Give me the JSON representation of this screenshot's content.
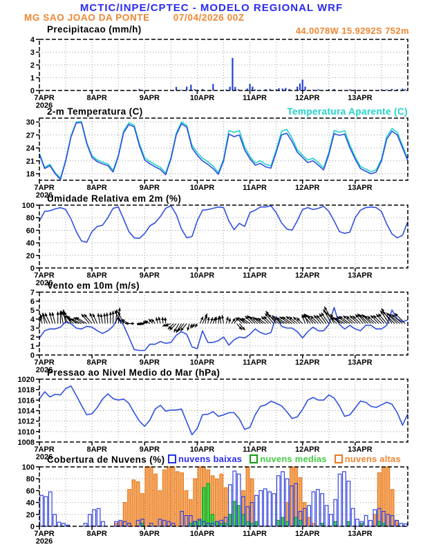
{
  "header": {
    "line1": "MCTIC/INPE/CPTEC - MODELO REGIONAL WRF",
    "station": "MG SAO JOAO DA PONTE",
    "run": "07/04/2026 00Z",
    "coords": "44.0078W 15.9292S 752m"
  },
  "colors": {
    "header_blue": "#2b2bf0",
    "orange": "#ef8632",
    "line_blue": "#2f4fe0",
    "cyan": "#1fd3c9",
    "green_fill": "#44cc44",
    "green_stroke": "#0f9a0f",
    "orange_fill": "#f5a45a",
    "orange_stroke": "#e6791e",
    "bar_blue": "#2040d8"
  },
  "x_axis": {
    "tick_labels": [
      "7APR",
      "8APR",
      "9APR",
      "10APR",
      "11APR",
      "12APR",
      "13APR"
    ],
    "year": "2026",
    "range_days": [
      7,
      14
    ],
    "minor_grid_hours": 12
  },
  "chart_data": [
    {
      "id": "precipitation",
      "type": "bar",
      "title": "Precipitacao (mm/h)",
      "ylim": [
        0,
        4
      ],
      "yticks": [
        0,
        1,
        2,
        3,
        4
      ],
      "bars": [
        [
          8.8,
          0.06
        ],
        [
          8.9,
          0.12
        ],
        [
          8.96,
          0.05
        ],
        [
          9.6,
          0.28
        ],
        [
          9.7,
          0.06
        ],
        [
          9.8,
          0.3
        ],
        [
          9.88,
          0.45
        ],
        [
          9.95,
          0.1
        ],
        [
          10.1,
          0.12
        ],
        [
          10.3,
          0.5
        ],
        [
          10.55,
          0.08
        ],
        [
          10.62,
          0.3
        ],
        [
          10.67,
          2.55
        ],
        [
          10.72,
          0.28
        ],
        [
          10.78,
          0.1
        ],
        [
          10.95,
          0.15
        ],
        [
          11.0,
          0.52
        ],
        [
          11.05,
          0.3
        ],
        [
          11.1,
          0.08
        ],
        [
          11.3,
          0.1
        ],
        [
          11.38,
          0.12
        ],
        [
          11.5,
          0.1
        ],
        [
          11.55,
          0.18
        ],
        [
          11.62,
          0.15
        ],
        [
          11.68,
          0.2
        ],
        [
          11.75,
          0.12
        ],
        [
          11.9,
          0.3
        ],
        [
          11.95,
          0.55
        ],
        [
          12.0,
          0.85
        ],
        [
          12.05,
          0.3
        ],
        [
          12.2,
          0.07
        ],
        [
          12.3,
          0.1
        ],
        [
          12.5,
          0.1
        ],
        [
          12.6,
          0.12
        ],
        [
          12.75,
          0.05
        ],
        [
          12.9,
          0.1
        ],
        [
          13.0,
          0.07
        ],
        [
          13.1,
          0.05
        ],
        [
          13.3,
          0.05
        ],
        [
          13.5,
          0.1
        ],
        [
          13.6,
          0.08
        ],
        [
          13.7,
          0.12
        ],
        [
          13.8,
          0.1
        ],
        [
          13.9,
          0.15
        ],
        [
          13.95,
          0.1
        ]
      ]
    },
    {
      "id": "temperature",
      "type": "line",
      "title": "2-m Temperatura (C)",
      "legend_right": "Temperatura Aparente (C)",
      "ylim": [
        16.5,
        30.9
      ],
      "yticks": [
        18,
        21,
        24,
        27,
        30
      ],
      "t_start": 7.0,
      "t_step_days": 0.1,
      "series": [
        {
          "name": "Temperatura Aparente (C)",
          "color": "#1fd3c9",
          "values": [
            22.8,
            19.5,
            20.2,
            18.3,
            17.0,
            21.2,
            26.8,
            30.0,
            30.1,
            25.3,
            22.2,
            21.2,
            20.7,
            20.3,
            18.8,
            22.3,
            27.9,
            29.8,
            29.3,
            25.0,
            21.7,
            20.8,
            20.1,
            19.5,
            18.2,
            21.8,
            27.4,
            30.0,
            29.2,
            24.6,
            22.9,
            21.6,
            20.8,
            19.8,
            18.3,
            21.4,
            28.0,
            27.6,
            28.0,
            24.2,
            22.0,
            20.5,
            21.0,
            20.2,
            19.8,
            23.5,
            27.8,
            28.3,
            26.3,
            23.6,
            22.3,
            21.2,
            21.6,
            20.6,
            19.4,
            23.0,
            28.0,
            27.6,
            28.0,
            24.7,
            21.9,
            19.7,
            19.1,
            18.5,
            18.9,
            21.4,
            26.6,
            28.5,
            27.6,
            24.5,
            21.4
          ]
        },
        {
          "name": "2-m Temperatura (C)",
          "color": "#2f4fe0",
          "values": [
            22.5,
            19.2,
            19.9,
            18.0,
            16.7,
            21.0,
            26.5,
            29.8,
            29.9,
            25.0,
            21.8,
            20.8,
            20.3,
            19.9,
            18.4,
            22.0,
            27.5,
            29.4,
            28.9,
            24.5,
            21.2,
            20.3,
            19.6,
            19.0,
            17.8,
            21.5,
            27.0,
            29.6,
            28.8,
            24.0,
            22.3,
            21.0,
            20.2,
            19.2,
            17.9,
            21.0,
            27.2,
            26.6,
            27.0,
            23.5,
            21.5,
            20.0,
            20.4,
            19.6,
            19.3,
            23.0,
            27.0,
            27.4,
            25.5,
            23.0,
            21.8,
            20.6,
            21.0,
            20.0,
            18.9,
            22.5,
            27.3,
            26.9,
            27.2,
            24.0,
            21.4,
            19.2,
            18.6,
            18.0,
            18.4,
            21.0,
            26.0,
            27.9,
            27.0,
            24.0,
            21.0
          ]
        }
      ]
    },
    {
      "id": "humidity",
      "type": "line",
      "title": "Umidade Relativa em 2m (%)",
      "ylim": [
        0,
        100
      ],
      "yticks": [
        0,
        20,
        40,
        60,
        80,
        100
      ],
      "t_start": 7.0,
      "t_step_days": 0.1,
      "series": [
        {
          "name": "Umidade Relativa em 2m (%)",
          "color": "#2f4fe0",
          "values": [
            75,
            90,
            91,
            94,
            96,
            93,
            78,
            58,
            43,
            41,
            58,
            66,
            68,
            80,
            95,
            97,
            78,
            58,
            48,
            47,
            55,
            67,
            72,
            82,
            95,
            99,
            85,
            62,
            48,
            50,
            75,
            92,
            93,
            95,
            97,
            96,
            75,
            61,
            71,
            66,
            88,
            92,
            97,
            97,
            99,
            88,
            72,
            62,
            60,
            75,
            93,
            96,
            93,
            95,
            98,
            90,
            75,
            58,
            55,
            57,
            80,
            92,
            96,
            97,
            96,
            90,
            70,
            54,
            48,
            52,
            74
          ]
        }
      ]
    },
    {
      "id": "wind",
      "type": "line+vectors",
      "title": "Vento em 10m (m/s)",
      "ylim": [
        0,
        7
      ],
      "yticks": [
        0,
        1,
        2,
        3,
        4,
        5,
        6,
        7
      ],
      "t_start": 7.0,
      "t_step_days": 0.1,
      "series": [
        {
          "name": "Vento em 10m (m/s)",
          "color": "#2f4fe0",
          "values": [
            1.9,
            2.7,
            2.9,
            2.9,
            3.1,
            3.7,
            3.5,
            3.0,
            2.9,
            3.2,
            3.1,
            2.7,
            2.4,
            2.7,
            3.2,
            4.2,
            3.3,
            2.0,
            0.6,
            0.5,
            0.5,
            1.2,
            1.2,
            1.5,
            1.3,
            1.4,
            2.2,
            2.6,
            2.3,
            0.9,
            0.7,
            2.7,
            1.4,
            1.4,
            1.6,
            2.0,
            1.1,
            1.7,
            2.0,
            1.9,
            2.3,
            2.9,
            2.5,
            2.3,
            2.5,
            4.3,
            3.2,
            3.0,
            3.0,
            2.6,
            1.9,
            2.6,
            3.1,
            2.7,
            2.7,
            3.4,
            5.3,
            3.4,
            2.9,
            3.3,
            2.9,
            2.7,
            3.3,
            3.3,
            2.9,
            2.9,
            3.3,
            5.0,
            4.0,
            3.7,
            3.9
          ]
        }
      ],
      "vectors": {
        "anchor_value": 3.5,
        "directions_deg": [
          15,
          -10,
          -25,
          -15,
          0,
          -10,
          -30,
          -50,
          -65,
          -60,
          -40,
          -25,
          -10,
          -5,
          0,
          5,
          -25,
          -60,
          -90,
          110,
          -85,
          -60,
          -40,
          -15,
          -5,
          -115,
          -135,
          -150,
          -140,
          -165,
          -150,
          25,
          10,
          20,
          5,
          -10,
          15,
          35,
          140,
          -45,
          -55,
          -45,
          -50,
          -55,
          -45,
          -40,
          -50,
          -60,
          -55,
          -50,
          -45,
          -20,
          -40,
          -45,
          -40,
          -35,
          -30,
          -45,
          -60,
          -55,
          -50,
          -45,
          -40,
          -45,
          -50,
          -45,
          -40,
          -35,
          -45,
          -50,
          -45
        ]
      }
    },
    {
      "id": "pressure",
      "type": "line",
      "title": "Pressao ao Nivel Medio do Mar (hPa)",
      "ylim": [
        1008,
        1020
      ],
      "yticks": [
        1008,
        1010,
        1012,
        1014,
        1016,
        1018,
        1020
      ],
      "t_start": 7.0,
      "t_step_days": 0.1,
      "series": [
        {
          "name": "Pressao ao Nivel Medio do Mar (hPa)",
          "color": "#2f4fe0",
          "values": [
            1016.2,
            1017.6,
            1016.6,
            1017.1,
            1017.0,
            1018.2,
            1018.7,
            1016.9,
            1015.0,
            1013.2,
            1013.4,
            1014.6,
            1016.2,
            1017.2,
            1016.3,
            1016.0,
            1016.2,
            1015.4,
            1013.6,
            1012.0,
            1011.0,
            1012.2,
            1014.3,
            1015.0,
            1013.9,
            1014.1,
            1014.1,
            1014.3,
            1011.8,
            1009.4,
            1010.6,
            1013.2,
            1013.3,
            1013.8,
            1012.9,
            1013.2,
            1013.6,
            1013.6,
            1012.4,
            1010.4,
            1010.8,
            1013.2,
            1014.8,
            1015.1,
            1015.8,
            1015.4,
            1014.9,
            1013.8,
            1012.5,
            1012.8,
            1014.2,
            1016.0,
            1016.5,
            1016.0,
            1016.0,
            1017.0,
            1016.4,
            1014.9,
            1012.9,
            1013.2,
            1014.5,
            1015.8,
            1015.6,
            1014.8,
            1014.6,
            1015.1,
            1015.6,
            1015.2,
            1013.6,
            1011.2,
            1013.4
          ]
        }
      ]
    },
    {
      "id": "clouds",
      "type": "bar",
      "title": "Cobertura de Nuvens (%)",
      "ylim": [
        0,
        100
      ],
      "yticks": [
        0,
        20,
        40,
        60,
        80,
        100
      ],
      "t_start": 7.0,
      "bar_step_days": 0.08333,
      "series": [
        {
          "name": "nuvens altas",
          "fill": "#f5a45a",
          "stroke": "#e6791e",
          "values": [
            0,
            0,
            0,
            0,
            0,
            0,
            0,
            0,
            0,
            0,
            0,
            0,
            0,
            0,
            0,
            0,
            0,
            5,
            8,
            40,
            62,
            78,
            75,
            55,
            100,
            100,
            88,
            60,
            95,
            100,
            100,
            92,
            90,
            60,
            45,
            80,
            100,
            100,
            95,
            85,
            80,
            88,
            65,
            20,
            0,
            0,
            60,
            100,
            80,
            5,
            0,
            0,
            0,
            0,
            0,
            0,
            40,
            100,
            100,
            82,
            40,
            15,
            5,
            0,
            0,
            0,
            0,
            0,
            0,
            0,
            0,
            0,
            0,
            0,
            0,
            0,
            20,
            90,
            100,
            100,
            62,
            10,
            0,
            0
          ]
        },
        {
          "name": "nuvens medias",
          "fill": "#44cc44",
          "stroke": "#0f9a0f",
          "values": [
            0,
            0,
            0,
            0,
            0,
            0,
            0,
            0,
            0,
            0,
            0,
            0,
            0,
            0,
            0,
            0,
            0,
            0,
            0,
            0,
            0,
            0,
            0,
            5,
            0,
            0,
            0,
            0,
            0,
            0,
            0,
            0,
            0,
            0,
            5,
            8,
            10,
            65,
            72,
            20,
            8,
            5,
            5,
            20,
            42,
            35,
            20,
            8,
            5,
            8,
            0,
            0,
            0,
            0,
            10,
            15,
            8,
            0,
            15,
            10,
            0,
            0,
            0,
            0,
            5,
            0,
            0,
            8,
            0,
            0,
            8,
            0,
            0,
            5,
            0,
            0,
            0,
            8,
            5,
            0,
            0,
            0,
            0,
            0
          ]
        },
        {
          "name": "nuvens baixas",
          "fill": "none",
          "stroke": "#2233dd",
          "values": [
            52,
            50,
            58,
            20,
            7,
            5,
            2,
            0,
            0,
            0,
            5,
            20,
            28,
            30,
            8,
            0,
            0,
            8,
            10,
            8,
            5,
            0,
            10,
            12,
            0,
            5,
            0,
            12,
            10,
            8,
            5,
            0,
            25,
            18,
            18,
            8,
            12,
            8,
            5,
            5,
            8,
            10,
            15,
            70,
            93,
            88,
            50,
            33,
            40,
            52,
            60,
            63,
            58,
            55,
            85,
            92,
            80,
            68,
            72,
            25,
            30,
            35,
            58,
            62,
            55,
            35,
            20,
            45,
            88,
            92,
            76,
            30,
            12,
            8,
            18,
            10,
            28,
            30,
            25,
            20,
            18,
            10,
            5,
            4
          ]
        }
      ]
    }
  ]
}
